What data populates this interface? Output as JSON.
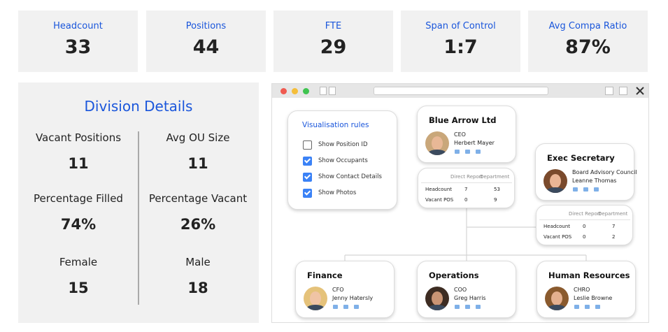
{
  "kpis": [
    {
      "label": "Headcount",
      "value": 33
    },
    {
      "label": "Positions",
      "value": 44
    },
    {
      "label": "FTE",
      "value": 29
    },
    {
      "label": "Span of Control",
      "value": "1:7"
    },
    {
      "label": "Avg Compa Ratio",
      "value": "87%"
    }
  ],
  "division": {
    "title": "Division Details",
    "items": [
      {
        "label": "Vacant Positions",
        "value": 11
      },
      {
        "label": "Avg OU Size",
        "value": 11
      },
      {
        "label": "Percentage Filled",
        "value": "74%"
      },
      {
        "label": "Percentage Vacant",
        "value": "26%"
      },
      {
        "label": "Female",
        "value": 15
      },
      {
        "label": "Male",
        "value": 18
      }
    ]
  },
  "org_chart": {
    "rules": {
      "title": "Visualisation rules",
      "options": [
        {
          "label": "Show Position ID",
          "checked": false
        },
        {
          "label": "Show Occupants",
          "checked": true
        },
        {
          "label": "Show Contact Details",
          "checked": true
        },
        {
          "label": "Show Photos",
          "checked": true
        }
      ]
    },
    "nodes": [
      {
        "name": "Blue Arrow Ltd",
        "role": "CEO",
        "person": "Herbert Mayer",
        "stats": {
          "columns": [
            "Direct Report",
            "Department"
          ],
          "rows": [
            {
              "label": "Headcount",
              "values": [
                7,
                53
              ]
            },
            {
              "label": "Vacant POS",
              "values": [
                0,
                9
              ]
            }
          ]
        }
      },
      {
        "name": "Exec Secretary",
        "role": "Board Advisory Council",
        "person": "Leanne Thomas",
        "stats": {
          "columns": [
            "Direct Report",
            "Department"
          ],
          "rows": [
            {
              "label": "Headcount",
              "values": [
                0,
                7
              ]
            },
            {
              "label": "Vacant POS",
              "values": [
                0,
                2
              ]
            }
          ]
        }
      },
      {
        "name": "Finance",
        "role": "CFO",
        "person": "Jenny Hatersly"
      },
      {
        "name": "Operations",
        "role": "COO",
        "person": "Greg Harris"
      },
      {
        "name": "Human Resources",
        "role": "CHRO",
        "person": "Leslie Browne"
      }
    ]
  }
}
